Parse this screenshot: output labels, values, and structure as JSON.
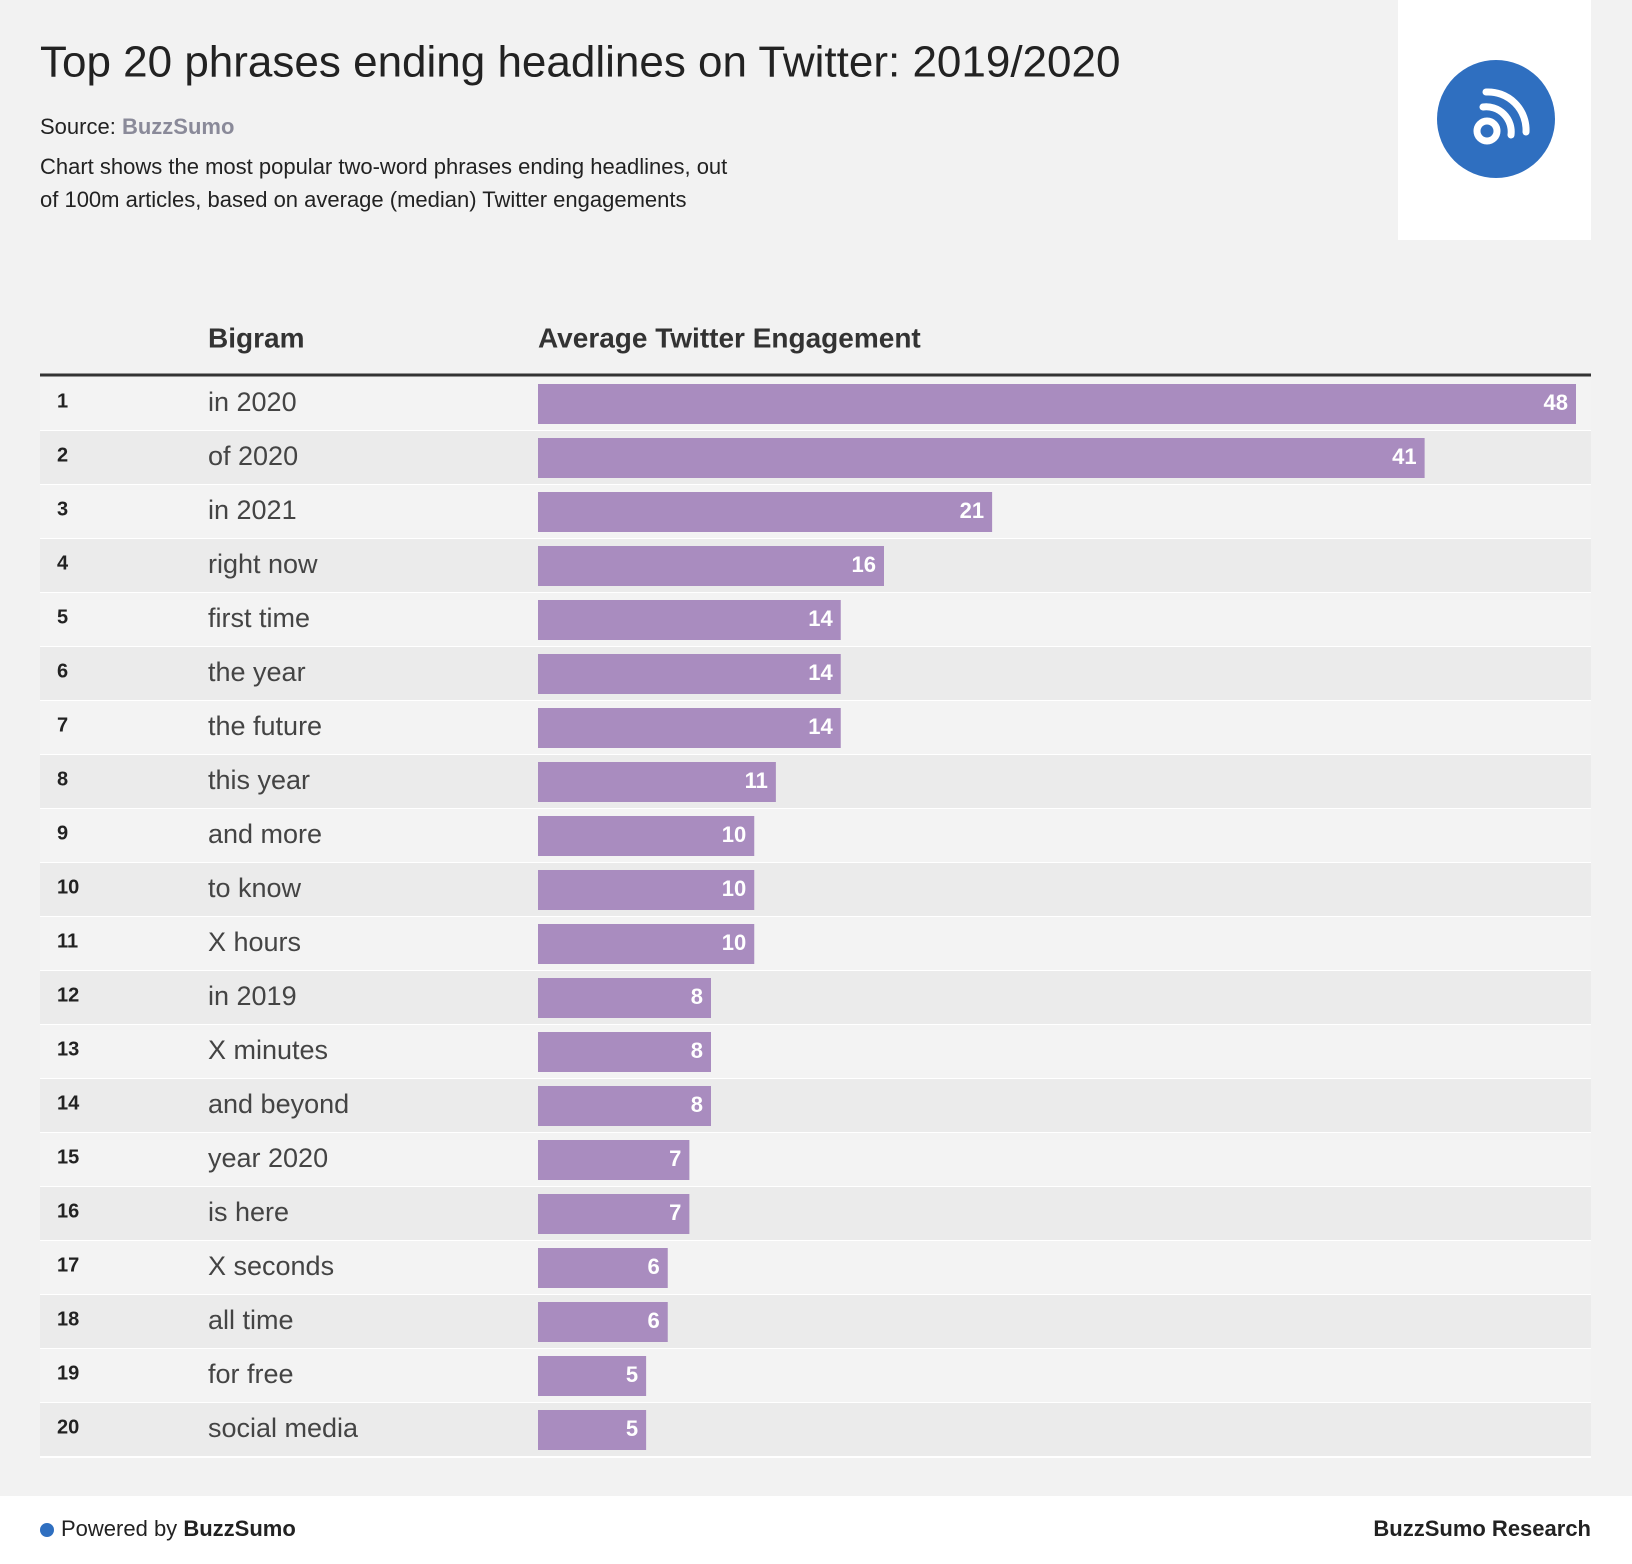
{
  "chart_data": {
    "type": "bar",
    "title": "Top 20 phrases ending headlines on Twitter: 2019/2020",
    "source_label": "Source:",
    "source": "BuzzSumo",
    "subtitle": [
      "Chart shows the most popular two-word phrases ending headlines, out",
      "of 100m articles, based on average (median) Twitter engagements"
    ],
    "columns": [
      "Bigram",
      "Average Twitter Engagement"
    ],
    "ranks": [
      1,
      2,
      3,
      4,
      5,
      6,
      7,
      8,
      9,
      10,
      11,
      12,
      13,
      14,
      15,
      16,
      17,
      18,
      19,
      20
    ],
    "categories": [
      "in 2020",
      "of 2020",
      "in 2021",
      "right now",
      "first time",
      "the year",
      "the future",
      "this year",
      "and more",
      "to know",
      "X hours",
      "in 2019",
      "X minutes",
      "and beyond",
      "year 2020",
      "is here",
      "X seconds",
      "all time",
      "for free",
      "social media"
    ],
    "values": [
      48,
      41,
      21,
      16,
      14,
      14,
      14,
      11,
      10,
      10,
      10,
      8,
      8,
      8,
      7,
      7,
      6,
      6,
      5,
      5
    ],
    "color": "#a98cbf",
    "footer": {
      "powered_label": "Powered by",
      "powered_brand": "BuzzSumo",
      "credit": "BuzzSumo Research"
    }
  }
}
